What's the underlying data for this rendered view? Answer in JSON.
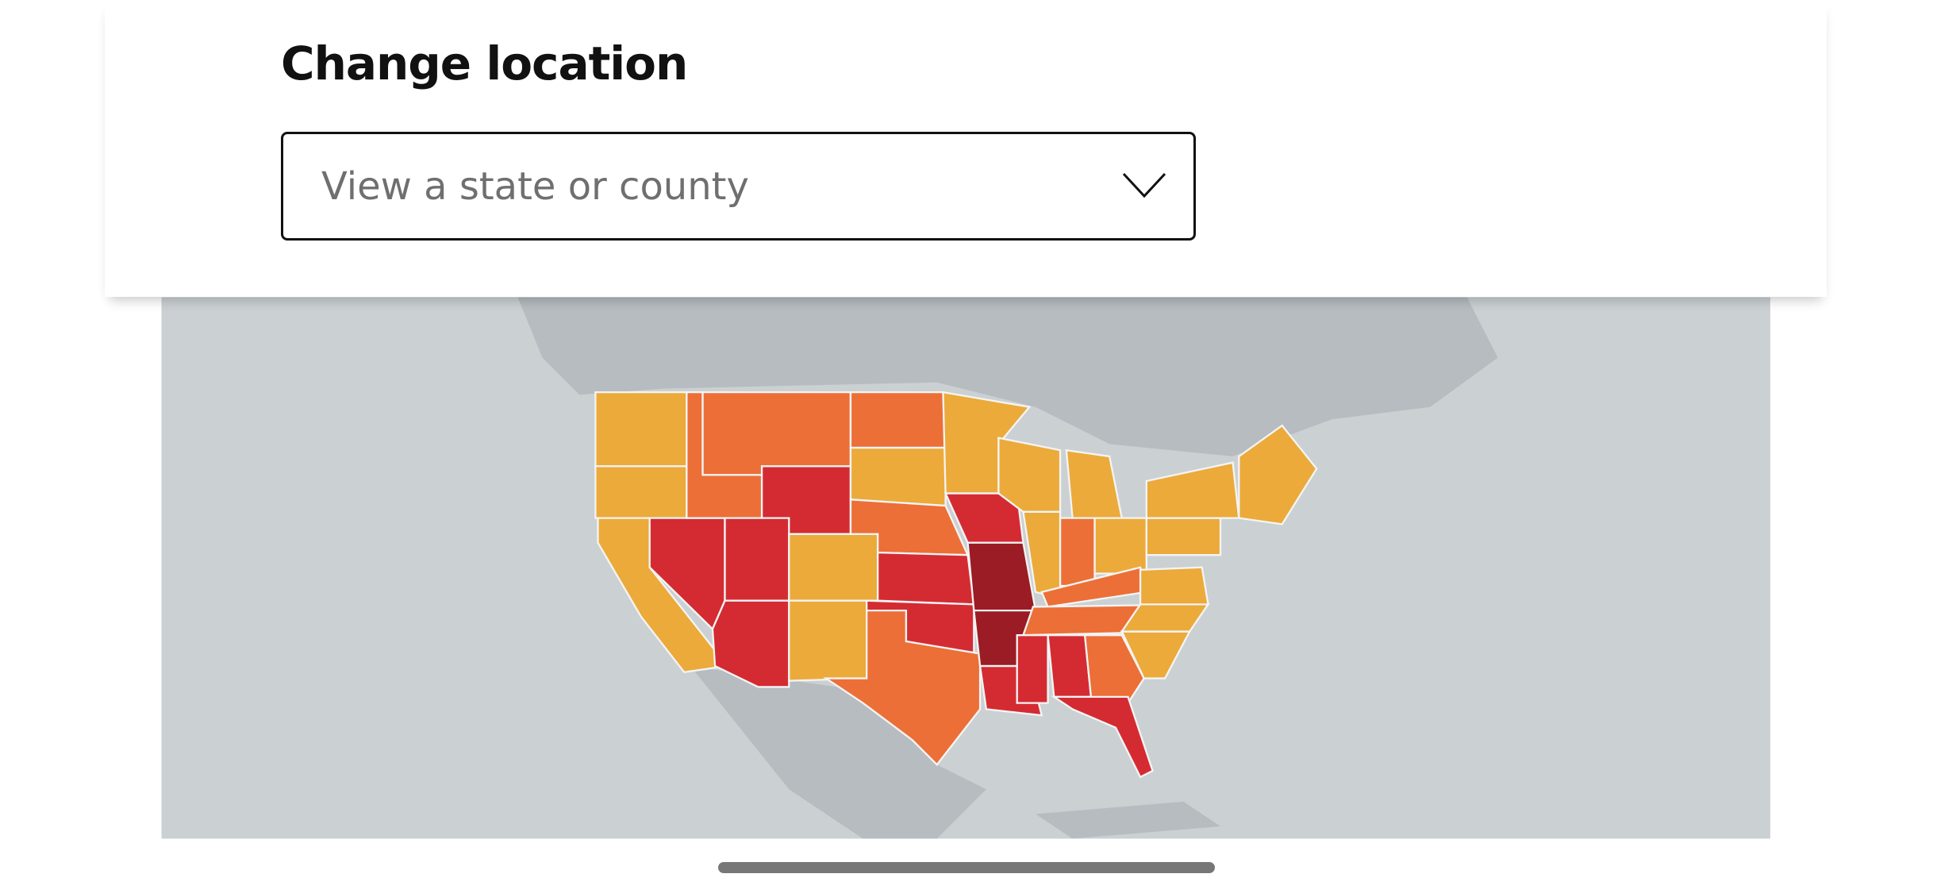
{
  "header": {
    "title": "Change location"
  },
  "dropdown": {
    "placeholder": "View a state or county"
  }
}
